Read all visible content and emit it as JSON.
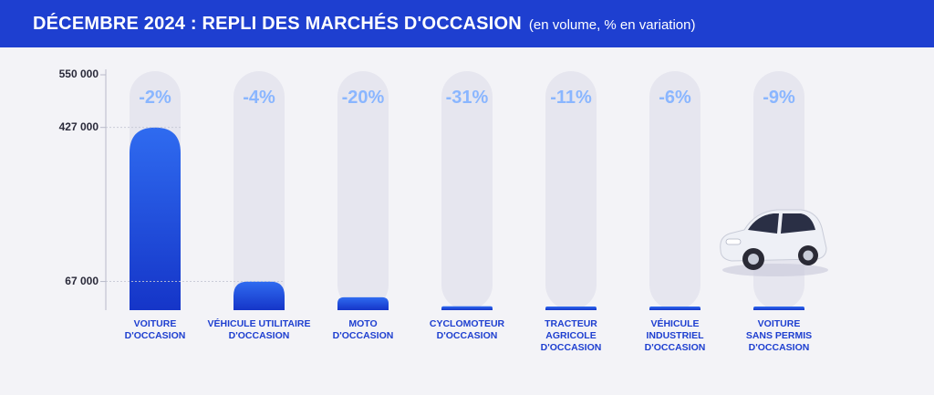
{
  "header": {
    "title": "DÉCEMBRE 2024 : REPLI DES MARCHÉS D'OCCASION",
    "subtitle": "(en volume, % en variation)"
  },
  "colors": {
    "header_bg": "#1e3fd0",
    "bar_top": "#2f6bf0",
    "bar_bottom": "#1535c8",
    "pill": "#e6e6ef",
    "pct_text": "#8ab6ff",
    "label_text": "#1e3fd0"
  },
  "chart_data": {
    "type": "bar",
    "title": "DÉCEMBRE 2024 : REPLI DES MARCHÉS D'OCCASION",
    "subtitle": "(en volume, % en variation)",
    "xlabel": "",
    "ylabel": "",
    "ylim": [
      0,
      550000
    ],
    "yticks": [
      {
        "value": 550000,
        "label": "550 000"
      },
      {
        "value": 427000,
        "label": "427 000"
      },
      {
        "value": 67000,
        "label": "67 000"
      }
    ],
    "categories": [
      "VOITURE\nD'OCCASION",
      "VÉHICULE UTILITAIRE\nD'OCCASION",
      "MOTO\nD'OCCASION",
      "CYCLOMOTEUR\nD'OCCASION",
      "TRACTEUR\nAGRICOLE\nD'OCCASION",
      "VÉHICULE\nINDUSTRIEL\nD'OCCASION",
      "VOITURE\nSANS PERMIS\nD'OCCASION"
    ],
    "values": [
      427000,
      67000,
      30000,
      9000,
      7000,
      6000,
      5000
    ],
    "changes": [
      "-2%",
      "-4%",
      "-20%",
      "-31%",
      "-11%",
      "-6%",
      "-9%"
    ],
    "grid": false,
    "legend": "none"
  }
}
